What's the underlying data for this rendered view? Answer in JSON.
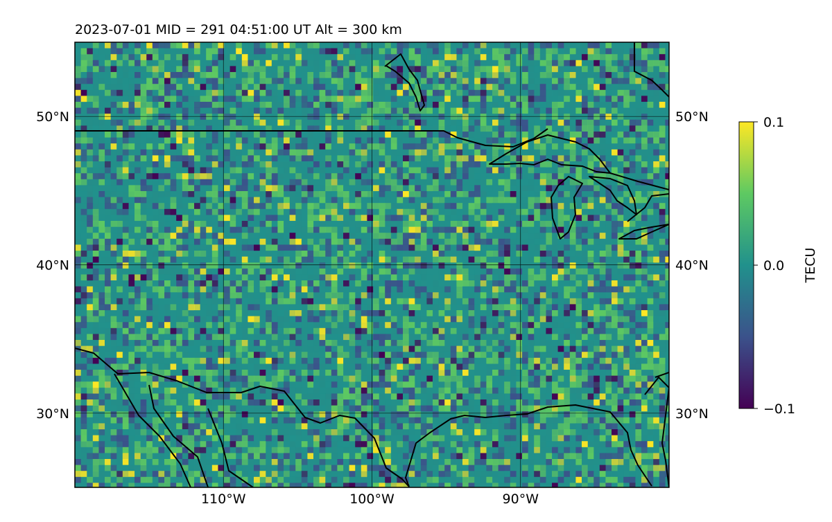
{
  "header": {
    "title": "2023-07-01  MID = 291    04:51:00  UT  Alt = 300 km"
  },
  "map": {
    "projection": "plate-carree",
    "lon_range": [
      -120,
      -80
    ],
    "lat_range": [
      25,
      55
    ],
    "gridlines": {
      "lon": [
        -110,
        -100,
        -90
      ],
      "lat": [
        30,
        40,
        50
      ]
    },
    "grid_on": true,
    "lon_tick_labels": [
      "110°W",
      "100°W",
      "90°W"
    ],
    "lat_tick_labels_left": [
      "30°N",
      "40°N",
      "50°N"
    ],
    "lat_tick_labels_right": [
      "30°N",
      "40°N",
      "50°N"
    ],
    "colormap": "viridis",
    "field": "differential TEC (mostly near zero, speckled positive/negative cells)"
  },
  "colorbar": {
    "label": "TECU",
    "ticks": [
      "0.1",
      "0.0",
      "−0.1"
    ],
    "vmin": -0.1,
    "vmax": 0.1,
    "colors": [
      "#440154",
      "#3b528b",
      "#21918c",
      "#5ec962",
      "#fde725"
    ]
  }
}
